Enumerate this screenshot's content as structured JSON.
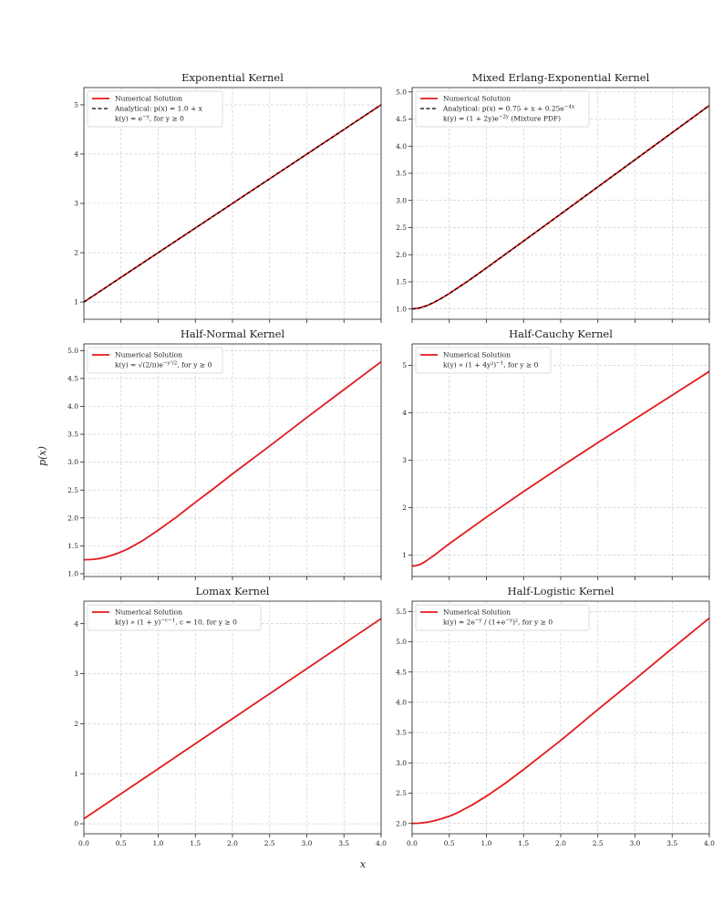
{
  "figure": {
    "xlabel": "x",
    "ylabel": "p(x)"
  },
  "chart_data": [
    {
      "type": "line",
      "title": "Exponential Kernel",
      "xlim": [
        0,
        4
      ],
      "ylim": [
        0.65,
        5.35
      ],
      "xticks": [
        "0.0",
        "0.5",
        "1.0",
        "1.5",
        "2.0",
        "2.5",
        "3.0",
        "3.5",
        "4.0"
      ],
      "show_xtick_labels": false,
      "yticks": [
        1,
        2,
        3,
        4,
        5
      ],
      "ytick_labels": [
        "1",
        "2",
        "3",
        "4",
        "5"
      ],
      "series": [
        {
          "name": "Numerical Solution",
          "color": "#e31a1c",
          "style": "solid",
          "x": [
            0,
            0.5,
            1.0,
            1.5,
            2.0,
            2.5,
            3.0,
            3.5,
            4.0
          ],
          "y": [
            1.0,
            1.5,
            2.0,
            2.5,
            3.0,
            3.5,
            4.0,
            4.5,
            5.0
          ]
        },
        {
          "name": "Analytical: p(x) = 1.0 + x",
          "color": "#000000",
          "style": "dashed",
          "x": [
            0,
            0.5,
            1.0,
            1.5,
            2.0,
            2.5,
            3.0,
            3.5,
            4.0
          ],
          "y": [
            1.0,
            1.5,
            2.0,
            2.5,
            3.0,
            3.5,
            4.0,
            4.5,
            5.0
          ]
        }
      ],
      "legend_note": "k(y) = e^{−y}, for y ≥ 0",
      "legend_position": "top-left"
    },
    {
      "type": "line",
      "title": "Mixed Erlang-Exponential Kernel",
      "xlim": [
        0,
        4
      ],
      "ylim": [
        0.81,
        5.08
      ],
      "xticks": [
        "0.0",
        "0.5",
        "1.0",
        "1.5",
        "2.0",
        "2.5",
        "3.0",
        "3.5",
        "4.0"
      ],
      "show_xtick_labels": false,
      "yticks": [
        1.0,
        1.5,
        2.0,
        2.5,
        3.0,
        3.5,
        4.0,
        4.5,
        5.0
      ],
      "ytick_labels": [
        "1.0",
        "1.5",
        "2.0",
        "2.5",
        "3.0",
        "3.5",
        "4.0",
        "4.5",
        "5.0"
      ],
      "series": [
        {
          "name": "Numerical Solution",
          "color": "#e31a1c",
          "style": "solid",
          "x": [
            0,
            0.1,
            0.2,
            0.3,
            0.4,
            0.5,
            0.75,
            1.0,
            1.5,
            2.0,
            2.5,
            3.0,
            3.5,
            4.0
          ],
          "y": [
            1.0,
            1.018,
            1.062,
            1.125,
            1.201,
            1.284,
            1.512,
            1.755,
            2.251,
            2.75,
            3.25,
            3.75,
            4.25,
            4.75
          ]
        },
        {
          "name": "Analytical: p(x) = 0.75 + x + 0.25e^{−4x}",
          "color": "#000000",
          "style": "dashed",
          "x": [
            0,
            0.1,
            0.2,
            0.3,
            0.4,
            0.5,
            0.75,
            1.0,
            1.5,
            2.0,
            2.5,
            3.0,
            3.5,
            4.0
          ],
          "y": [
            1.0,
            1.018,
            1.062,
            1.125,
            1.201,
            1.284,
            1.512,
            1.755,
            2.251,
            2.75,
            3.25,
            3.75,
            4.25,
            4.75
          ]
        }
      ],
      "legend_note": "k(y) = (1 + 2y)e^{−2y} (Mixture PDF)",
      "legend_position": "top-left"
    },
    {
      "type": "line",
      "title": "Half-Normal Kernel",
      "xlim": [
        0,
        4
      ],
      "ylim": [
        0.95,
        5.12
      ],
      "xticks": [
        "0.0",
        "0.5",
        "1.0",
        "1.5",
        "2.0",
        "2.5",
        "3.0",
        "3.5",
        "4.0"
      ],
      "show_xtick_labels": false,
      "yticks": [
        1.0,
        1.5,
        2.0,
        2.5,
        3.0,
        3.5,
        4.0,
        4.5,
        5.0
      ],
      "ytick_labels": [
        "1.0",
        "1.5",
        "2.0",
        "2.5",
        "3.0",
        "3.5",
        "4.0",
        "4.5",
        "5.0"
      ],
      "series": [
        {
          "name": "Numerical Solution",
          "color": "#e31a1c",
          "style": "solid",
          "x": [
            0,
            0.1,
            0.2,
            0.3,
            0.4,
            0.5,
            0.6,
            0.8,
            1.0,
            1.25,
            1.5,
            1.75,
            2.0,
            2.5,
            3.0,
            3.5,
            4.0
          ],
          "y": [
            1.25,
            1.255,
            1.27,
            1.3,
            1.34,
            1.39,
            1.45,
            1.6,
            1.78,
            2.02,
            2.28,
            2.53,
            2.79,
            3.29,
            3.8,
            4.3,
            4.8
          ]
        }
      ],
      "legend_note": "k(y) = √(2/π)e^{−y²/2}, for y ≥ 0",
      "legend_position": "top-left"
    },
    {
      "type": "line",
      "title": "Half-Cauchy Kernel",
      "xlim": [
        0,
        4
      ],
      "ylim": [
        0.55,
        5.45
      ],
      "xticks": [
        "0.0",
        "0.5",
        "1.0",
        "1.5",
        "2.0",
        "2.5",
        "3.0",
        "3.5",
        "4.0"
      ],
      "show_xtick_labels": false,
      "yticks": [
        1,
        2,
        3,
        4,
        5
      ],
      "ytick_labels": [
        "1",
        "2",
        "3",
        "4",
        "5"
      ],
      "series": [
        {
          "name": "Numerical Solution",
          "color": "#e31a1c",
          "style": "solid",
          "x": [
            0,
            0.05,
            0.1,
            0.15,
            0.2,
            0.3,
            0.4,
            0.5,
            0.75,
            1.0,
            1.5,
            2.0,
            2.5,
            3.0,
            3.5,
            4.0
          ],
          "y": [
            0.77,
            0.78,
            0.8,
            0.84,
            0.89,
            1.0,
            1.12,
            1.24,
            1.52,
            1.8,
            2.34,
            2.86,
            3.37,
            3.87,
            4.37,
            4.87
          ]
        }
      ],
      "legend_note": "k(y) ∝ (1 + 4y²)^{−1}, for y ≥ 0",
      "legend_position": "top-left"
    },
    {
      "type": "line",
      "title": "Lomax Kernel",
      "xlim": [
        0,
        4
      ],
      "ylim": [
        -0.2,
        4.45
      ],
      "xticks": [
        "0.0",
        "0.5",
        "1.0",
        "1.5",
        "2.0",
        "2.5",
        "3.0",
        "3.5",
        "4.0"
      ],
      "show_xtick_labels": true,
      "yticks": [
        0,
        1,
        2,
        3,
        4
      ],
      "ytick_labels": [
        "0",
        "1",
        "2",
        "3",
        "4"
      ],
      "series": [
        {
          "name": "Numerical Solution",
          "color": "#e31a1c",
          "style": "solid",
          "x": [
            0,
            0.5,
            1.0,
            1.5,
            2.0,
            2.5,
            3.0,
            3.5,
            4.0
          ],
          "y": [
            0.1,
            0.6,
            1.1,
            1.6,
            2.1,
            2.6,
            3.1,
            3.6,
            4.1
          ]
        }
      ],
      "legend_note": "k(y) ∝ (1 + y)^{−c−1}, c = 10, for y ≥ 0",
      "legend_position": "top-left"
    },
    {
      "type": "line",
      "title": "Half-Logistic Kernel",
      "xlim": [
        0,
        4
      ],
      "ylim": [
        1.83,
        5.67
      ],
      "xticks": [
        "0.0",
        "0.5",
        "1.0",
        "1.5",
        "2.0",
        "2.5",
        "3.0",
        "3.5",
        "4.0"
      ],
      "show_xtick_labels": true,
      "yticks": [
        2.0,
        2.5,
        3.0,
        3.5,
        4.0,
        4.5,
        5.0,
        5.5
      ],
      "ytick_labels": [
        "2.0",
        "2.5",
        "3.0",
        "3.5",
        "4.0",
        "4.5",
        "5.0",
        "5.5"
      ],
      "series": [
        {
          "name": "Numerical Solution",
          "color": "#e31a1c",
          "style": "solid",
          "x": [
            0,
            0.1,
            0.2,
            0.3,
            0.4,
            0.5,
            0.6,
            0.8,
            1.0,
            1.25,
            1.5,
            2.0,
            2.5,
            3.0,
            3.5,
            4.0
          ],
          "y": [
            2.0,
            2.005,
            2.02,
            2.045,
            2.08,
            2.12,
            2.17,
            2.3,
            2.45,
            2.66,
            2.89,
            3.37,
            3.88,
            4.38,
            4.89,
            5.39
          ]
        }
      ],
      "legend_note": "k(y) = 2e^{−y} / (1+e^{−y})², for y ≥ 0",
      "legend_position": "top-left"
    }
  ]
}
